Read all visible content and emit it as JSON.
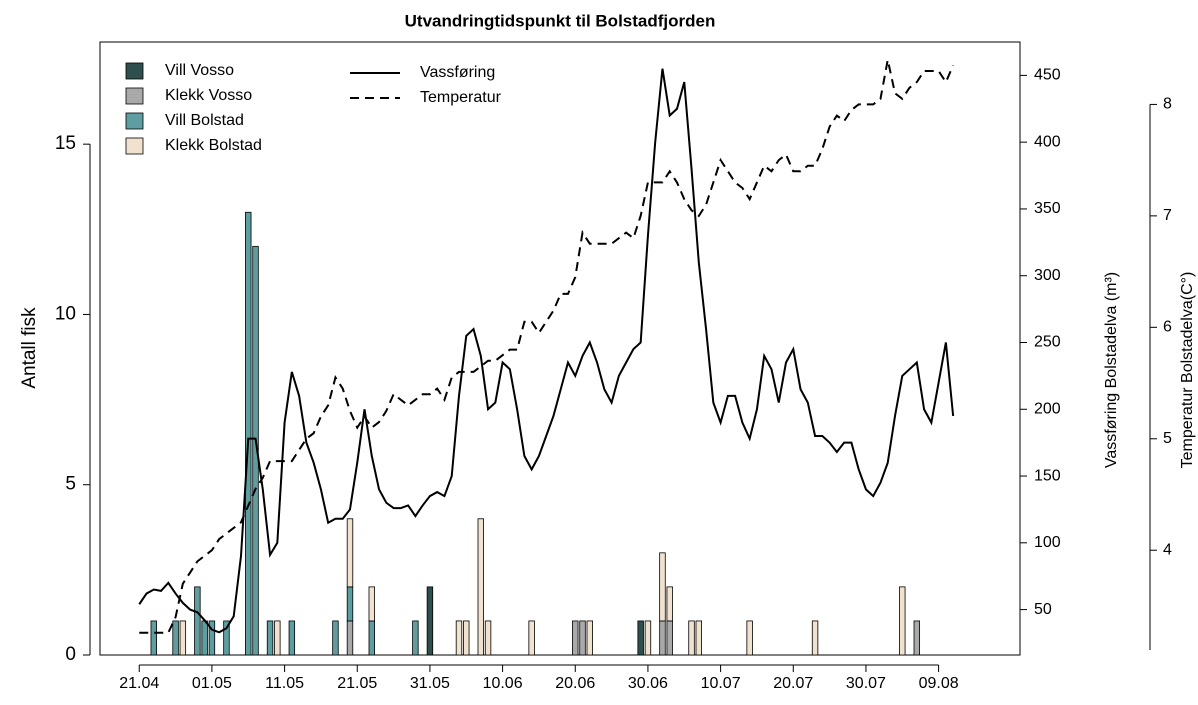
{
  "chart_data": {
    "type": "combo",
    "title": "Utvandringtidspunkt til Bolstadfjorden",
    "ylabel": "Antall fisk",
    "y2label": "Vassføring Bolstadelva (m³)",
    "y3label": "Temperatur Bolstadelva(C°)",
    "xlim": [
      -5.4,
      121.2
    ],
    "xticks": [
      {
        "value": 0,
        "label": "21.04"
      },
      {
        "value": 10,
        "label": "01.05"
      },
      {
        "value": 20,
        "label": "11.05"
      },
      {
        "value": 30,
        "label": "21.05"
      },
      {
        "value": 40,
        "label": "31.05"
      },
      {
        "value": 50,
        "label": "10.06"
      },
      {
        "value": 60,
        "label": "20.06"
      },
      {
        "value": 70,
        "label": "30.06"
      },
      {
        "value": 80,
        "label": "10.07"
      },
      {
        "value": 90,
        "label": "20.07"
      },
      {
        "value": 100,
        "label": "30.07"
      },
      {
        "value": 110,
        "label": "09.08"
      }
    ],
    "ylim": [
      0,
      18
    ],
    "yticks": [
      0,
      5,
      10,
      15
    ],
    "y2lim": [
      16,
      475
    ],
    "y2ticks": [
      50,
      100,
      150,
      200,
      250,
      300,
      350,
      400,
      450
    ],
    "y3lim": [
      3.06,
      8.56
    ],
    "y3ticks": [
      4,
      5,
      6,
      7,
      8
    ],
    "x": [
      2,
      5,
      6,
      8,
      9,
      10,
      12,
      15,
      16,
      18,
      19,
      21,
      27,
      29,
      32,
      38,
      40,
      44,
      45,
      47,
      48,
      54,
      60,
      61,
      62,
      69,
      70,
      72,
      73,
      76,
      77,
      84,
      93,
      105,
      107
    ],
    "series": [
      {
        "name": "Vill Vosso",
        "type": "bar",
        "color": "#2f4f4f",
        "values": [
          0,
          0,
          0,
          0,
          0,
          0,
          0,
          0,
          0,
          0,
          0,
          0,
          0,
          0,
          0,
          0,
          2,
          0,
          0,
          0,
          0,
          0,
          0,
          0,
          0,
          1,
          0,
          0,
          0,
          0,
          0,
          0,
          0,
          0,
          0
        ]
      },
      {
        "name": "Klekk Vosso",
        "type": "bar",
        "color": "#a9a9a9",
        "values": [
          0,
          0,
          0,
          0,
          0,
          0,
          0,
          0,
          0,
          0,
          0,
          0,
          0,
          1,
          0,
          0,
          0,
          0,
          0,
          0,
          0,
          0,
          1,
          1,
          0,
          0,
          0,
          1,
          1,
          0,
          0,
          0,
          0,
          0,
          1
        ]
      },
      {
        "name": "Vill Bolstad",
        "type": "bar",
        "color": "#5f9ea0",
        "values": [
          1,
          1,
          0,
          2,
          1,
          1,
          1,
          13,
          12,
          1,
          0,
          1,
          1,
          1,
          1,
          1,
          0,
          0,
          0,
          0,
          0,
          0,
          0,
          0,
          0,
          0,
          0,
          0,
          0,
          0,
          0,
          0,
          0,
          0,
          0
        ]
      },
      {
        "name": "Klekk Bolstad",
        "type": "bar",
        "color": "#f0e2cf",
        "values": [
          0,
          0,
          1,
          0,
          0,
          0,
          0,
          0,
          0,
          0,
          1,
          0,
          0,
          2,
          1,
          0,
          0,
          1,
          1,
          4,
          1,
          1,
          0,
          0,
          1,
          0,
          1,
          2,
          1,
          1,
          1,
          1,
          1,
          2,
          0
        ]
      },
      {
        "name": "Vassføring",
        "type": "line",
        "axis": "y2",
        "color": "#000000",
        "dash": false,
        "x": [
          0,
          1,
          2,
          3,
          4,
          5,
          6,
          7,
          8,
          9,
          10,
          11,
          12,
          13,
          14,
          15,
          16,
          17,
          18,
          19,
          20,
          21,
          22,
          23,
          24,
          25,
          26,
          27,
          28,
          29,
          30,
          31,
          32,
          33,
          34,
          35,
          36,
          37,
          38,
          39,
          40,
          41,
          42,
          43,
          44,
          45,
          46,
          47,
          48,
          49,
          50,
          51,
          52,
          53,
          54,
          55,
          56,
          57,
          58,
          59,
          60,
          61,
          62,
          63,
          64,
          65,
          66,
          67,
          68,
          69,
          70,
          71,
          72,
          73,
          74,
          75,
          76,
          77,
          78,
          79,
          80,
          81,
          82,
          83,
          84,
          85,
          86,
          87,
          88,
          89,
          90,
          91,
          92,
          93,
          94,
          95,
          96,
          97,
          98,
          99,
          100,
          101,
          102,
          103,
          104,
          105,
          106,
          107,
          108,
          109,
          110,
          111,
          112
        ],
        "values": [
          54,
          62,
          65,
          64,
          70,
          62,
          55,
          50,
          48,
          42,
          35,
          33,
          36,
          45,
          90,
          178,
          178,
          140,
          91,
          100,
          190,
          228,
          210,
          175,
          160,
          140,
          115,
          118,
          118,
          125,
          160,
          200,
          165,
          140,
          130,
          126,
          126,
          128,
          120,
          128,
          135,
          138,
          135,
          150,
          210,
          255,
          260,
          240,
          200,
          205,
          235,
          230,
          200,
          165,
          155,
          165,
          180,
          195,
          215,
          235,
          225,
          240,
          250,
          235,
          215,
          205,
          225,
          235,
          245,
          250,
          330,
          400,
          455,
          420,
          425,
          445,
          380,
          310,
          260,
          205,
          190,
          210,
          210,
          190,
          178,
          200,
          240,
          230,
          205,
          235,
          245,
          215,
          205,
          180,
          180,
          175,
          168,
          175,
          175,
          155,
          140,
          135,
          145,
          160,
          195,
          225,
          230,
          235,
          200,
          190,
          220,
          250,
          195
        ]
      },
      {
        "name": "Temperatur",
        "type": "line",
        "axis": "y3",
        "color": "#000000",
        "dash": true,
        "x": [
          0,
          1,
          2,
          3,
          4,
          5,
          6,
          7,
          8,
          9,
          10,
          11,
          12,
          13,
          14,
          15,
          16,
          17,
          18,
          19,
          20,
          21,
          22,
          23,
          24,
          25,
          26,
          27,
          28,
          29,
          30,
          31,
          32,
          33,
          34,
          35,
          36,
          37,
          38,
          39,
          40,
          41,
          42,
          43,
          44,
          45,
          46,
          47,
          48,
          49,
          50,
          51,
          52,
          53,
          54,
          55,
          56,
          57,
          58,
          59,
          60,
          61,
          62,
          63,
          64,
          65,
          66,
          67,
          68,
          69,
          70,
          71,
          72,
          73,
          74,
          75,
          76,
          77,
          78,
          79,
          80,
          81,
          82,
          83,
          84,
          85,
          86,
          87,
          88,
          89,
          90,
          91,
          92,
          93,
          94,
          95,
          96,
          97,
          98,
          99,
          100,
          101,
          102,
          103,
          104,
          105,
          106,
          107,
          108,
          109,
          110,
          111,
          112
        ],
        "values": [
          3.26,
          3.26,
          3.26,
          3.26,
          3.26,
          3.4,
          3.7,
          3.8,
          3.9,
          3.95,
          4.0,
          4.1,
          4.15,
          4.2,
          4.25,
          4.4,
          4.55,
          4.65,
          4.8,
          4.8,
          4.8,
          4.8,
          4.9,
          5.0,
          5.05,
          5.2,
          5.3,
          5.55,
          5.45,
          5.25,
          5.1,
          5.2,
          5.1,
          5.15,
          5.25,
          5.4,
          5.35,
          5.3,
          5.35,
          5.4,
          5.4,
          5.45,
          5.35,
          5.55,
          5.6,
          5.6,
          5.6,
          5.65,
          5.7,
          5.7,
          5.75,
          5.8,
          5.8,
          6.05,
          6.05,
          5.95,
          6.05,
          6.15,
          6.3,
          6.3,
          6.45,
          6.85,
          6.75,
          6.75,
          6.75,
          6.75,
          6.8,
          6.85,
          6.8,
          7.0,
          7.3,
          7.3,
          7.3,
          7.4,
          7.3,
          7.15,
          7.05,
          7.0,
          7.1,
          7.3,
          7.5,
          7.4,
          7.3,
          7.25,
          7.15,
          7.3,
          7.45,
          7.4,
          7.5,
          7.55,
          7.4,
          7.4,
          7.45,
          7.45,
          7.6,
          7.8,
          7.9,
          7.85,
          7.95,
          8.0,
          8.0,
          8.0,
          8.05,
          8.4,
          8.1,
          8.05,
          8.15,
          8.2,
          8.3,
          8.3,
          8.3,
          8.2,
          8.35
        ]
      }
    ]
  }
}
